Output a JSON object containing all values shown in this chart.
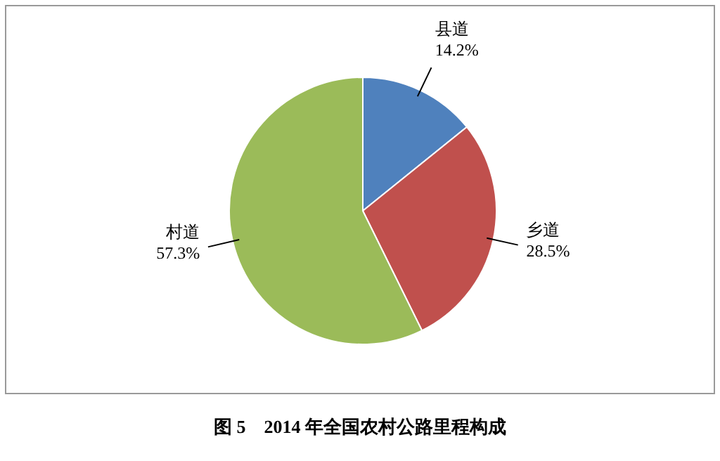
{
  "chart_data": {
    "type": "pie",
    "title": "图 5　2014 年全国农村公路里程构成",
    "categories": [
      "县道",
      "乡道",
      "村道"
    ],
    "values": [
      14.2,
      28.5,
      57.3
    ],
    "colors": [
      "#4f81bd",
      "#c0504d",
      "#9bbb59"
    ],
    "value_labels": [
      "14.2%",
      "28.5%",
      "57.3%"
    ]
  }
}
